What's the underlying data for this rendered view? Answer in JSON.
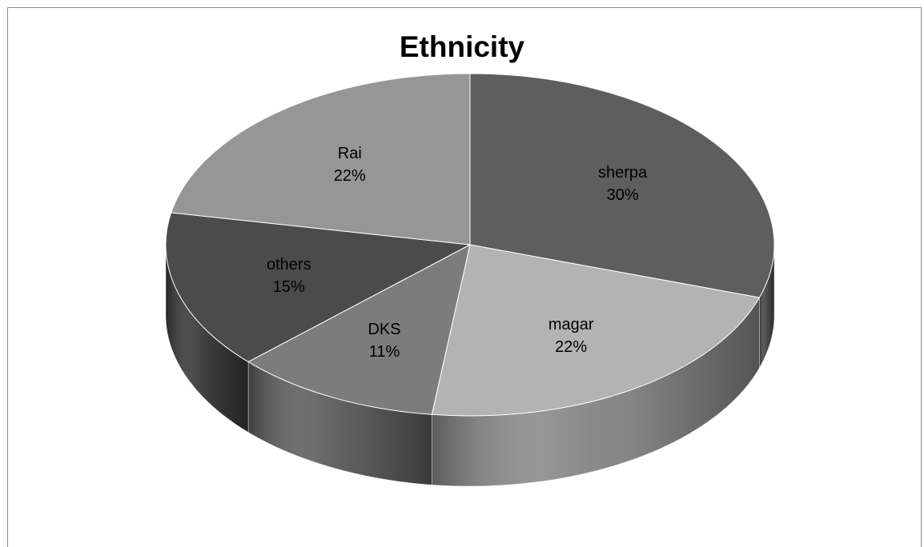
{
  "chart_data": {
    "type": "pie",
    "title": "Ethnicity",
    "three_d": true,
    "legend": "none",
    "slices": [
      {
        "label": "sherpa",
        "percent_label": "30%",
        "value": 30,
        "color": "#5e5e5e"
      },
      {
        "label": "magar",
        "percent_label": "22%",
        "value": 22,
        "color": "#b3b3b3"
      },
      {
        "label": "DKS",
        "percent_label": "11%",
        "value": 11,
        "color": "#7c7c7c"
      },
      {
        "label": "others",
        "percent_label": "15%",
        "value": 15,
        "color": "#4b4b4b"
      },
      {
        "label": "Rai",
        "percent_label": "22%",
        "value": 22,
        "color": "#969696"
      }
    ]
  }
}
